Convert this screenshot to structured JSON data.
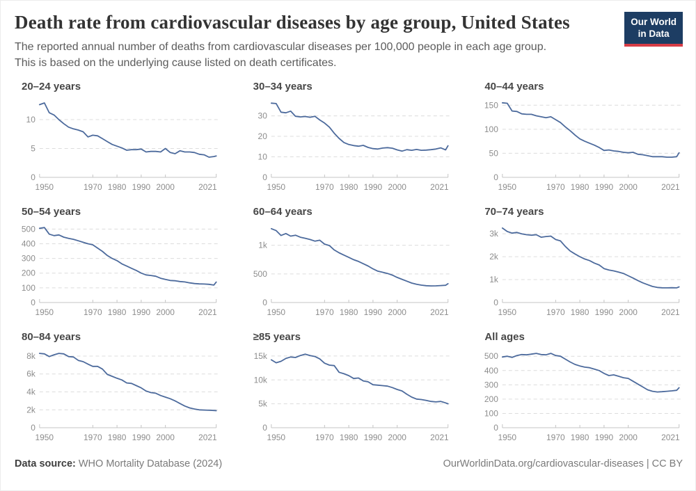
{
  "header": {
    "title": "Death rate from cardiovascular diseases by age group, United States",
    "subtitle": [
      "The reported annual number of deaths from cardiovascular diseases per 100,000 people in each age group.",
      "This is based on the underlying cause listed on death certificates."
    ],
    "logo": {
      "line1": "Our World",
      "line2": "in Data"
    }
  },
  "footer": {
    "source_label": "Data source:",
    "source_value": " WHO Mortality Database (2024)",
    "link": "OurWorldinData.org/cardiovascular-diseases | CC BY"
  },
  "colors": {
    "line": "#4c6a9c",
    "grid": "#dcdcdc",
    "axis": "#c4c4c4",
    "tick_label": "#8c8c8c",
    "logo_bg": "#1d3d63",
    "logo_red": "#d73c46"
  },
  "chart_data": {
    "type": "line",
    "title": "Death rate from cardiovascular diseases by age group, United States",
    "grid": "horizontal-dashed",
    "legend_position": "none",
    "x_range": [
      1948,
      2021
    ],
    "x_tick_labels": [
      "1950",
      "1970",
      "1980",
      "1990",
      "2000",
      "2021"
    ],
    "x_ticks": [
      1950,
      1970,
      1980,
      1990,
      2000,
      2021
    ],
    "x": [
      1948,
      1950,
      1952,
      1954,
      1956,
      1958,
      1960,
      1962,
      1964,
      1966,
      1968,
      1970,
      1972,
      1974,
      1976,
      1978,
      1980,
      1982,
      1984,
      1986,
      1988,
      1990,
      1992,
      1994,
      1996,
      1998,
      2000,
      2002,
      2004,
      2006,
      2008,
      2010,
      2012,
      2014,
      2016,
      2018,
      2020,
      2021
    ],
    "charts": [
      {
        "title": "20–24 years",
        "ylim": [
          0,
          13.5
        ],
        "yticks": [
          {
            "v": 0,
            "label": "0"
          },
          {
            "v": 5,
            "label": "5"
          },
          {
            "v": 10,
            "label": "10"
          }
        ],
        "values": [
          12.6,
          12.9,
          11.2,
          10.8,
          10.0,
          9.3,
          8.7,
          8.4,
          8.2,
          7.9,
          7.0,
          7.3,
          7.2,
          6.7,
          6.2,
          5.7,
          5.4,
          5.1,
          4.7,
          4.8,
          4.8,
          4.9,
          4.4,
          4.5,
          4.5,
          4.4,
          5.0,
          4.3,
          4.1,
          4.6,
          4.4,
          4.4,
          4.3,
          4.0,
          3.9,
          3.5,
          3.6,
          3.7
        ]
      },
      {
        "title": "30–34 years",
        "ylim": [
          0,
          38
        ],
        "yticks": [
          {
            "v": 0,
            "label": "0"
          },
          {
            "v": 10,
            "label": "10"
          },
          {
            "v": 20,
            "label": "20"
          },
          {
            "v": 30,
            "label": "30"
          }
        ],
        "values": [
          36.2,
          36.0,
          31.8,
          31.5,
          32.3,
          29.8,
          29.5,
          29.7,
          29.3,
          29.8,
          28.0,
          26.5,
          24.5,
          21.5,
          19.0,
          17.0,
          16.0,
          15.5,
          15.2,
          15.6,
          14.6,
          14.0,
          13.8,
          14.3,
          14.5,
          14.2,
          13.4,
          12.8,
          13.5,
          13.2,
          13.6,
          13.2,
          13.3,
          13.5,
          13.8,
          14.4,
          13.4,
          15.4
        ]
      },
      {
        "title": "40–44 years",
        "ylim": [
          0,
          162
        ],
        "yticks": [
          {
            "v": 0,
            "label": "0"
          },
          {
            "v": 50,
            "label": "50"
          },
          {
            "v": 100,
            "label": "100"
          },
          {
            "v": 150,
            "label": "150"
          }
        ],
        "values": [
          155,
          154,
          138,
          137,
          132,
          131,
          131,
          128,
          126,
          124,
          126,
          120,
          114,
          105,
          97,
          88,
          80,
          75,
          71,
          67,
          62,
          56,
          57,
          55,
          54,
          52,
          51,
          52,
          48,
          47,
          45,
          43,
          43,
          43,
          42,
          42,
          43,
          51
        ]
      },
      {
        "title": "50–54 years",
        "ylim": [
          0,
          530
        ],
        "yticks": [
          {
            "v": 0,
            "label": "0"
          },
          {
            "v": 100,
            "label": "100"
          },
          {
            "v": 200,
            "label": "200"
          },
          {
            "v": 300,
            "label": "300"
          },
          {
            "v": 400,
            "label": "400"
          },
          {
            "v": 500,
            "label": "500"
          }
        ],
        "values": [
          505,
          510,
          465,
          455,
          460,
          445,
          437,
          430,
          420,
          410,
          400,
          393,
          370,
          348,
          320,
          300,
          285,
          263,
          248,
          233,
          218,
          200,
          188,
          184,
          179,
          165,
          157,
          150,
          148,
          143,
          140,
          134,
          129,
          127,
          126,
          124,
          119,
          139
        ]
      },
      {
        "title": "60–64 years",
        "ylim": [
          0,
          1360
        ],
        "yticks": [
          {
            "v": 0,
            "label": "0"
          },
          {
            "v": 500,
            "label": "500"
          },
          {
            "v": 1000,
            "label": "1k"
          }
        ],
        "values": [
          1290,
          1255,
          1170,
          1205,
          1160,
          1175,
          1140,
          1122,
          1100,
          1072,
          1088,
          1020,
          995,
          918,
          868,
          828,
          788,
          748,
          718,
          678,
          638,
          588,
          548,
          528,
          508,
          478,
          438,
          405,
          373,
          340,
          318,
          303,
          294,
          290,
          291,
          296,
          301,
          329
        ]
      },
      {
        "title": "70–74 years",
        "ylim": [
          0,
          3400
        ],
        "yticks": [
          {
            "v": 0,
            "label": "0"
          },
          {
            "v": 1000,
            "label": "1k"
          },
          {
            "v": 2000,
            "label": "2k"
          },
          {
            "v": 3000,
            "label": "3k"
          }
        ],
        "values": [
          3250,
          3100,
          3030,
          3060,
          3000,
          2960,
          2940,
          2960,
          2850,
          2880,
          2900,
          2750,
          2690,
          2450,
          2250,
          2120,
          2000,
          1900,
          1830,
          1720,
          1640,
          1480,
          1420,
          1380,
          1330,
          1270,
          1170,
          1070,
          960,
          860,
          780,
          700,
          660,
          645,
          640,
          646,
          641,
          682
        ]
      },
      {
        "title": "80–84 years",
        "ylim": [
          0,
          8700
        ],
        "yticks": [
          {
            "v": 0,
            "label": "0"
          },
          {
            "v": 2000,
            "label": "2k"
          },
          {
            "v": 4000,
            "label": "4k"
          },
          {
            "v": 6000,
            "label": "6k"
          },
          {
            "v": 8000,
            "label": "8k"
          }
        ],
        "values": [
          8300,
          8250,
          7950,
          8150,
          8300,
          8250,
          7950,
          7900,
          7520,
          7380,
          7100,
          6850,
          6850,
          6550,
          5950,
          5740,
          5520,
          5340,
          5000,
          4950,
          4700,
          4450,
          4100,
          3920,
          3850,
          3600,
          3420,
          3240,
          3000,
          2700,
          2420,
          2210,
          2090,
          2000,
          1970,
          1950,
          1930,
          1900
        ]
      },
      {
        "title": "≥85 years",
        "ylim": [
          0,
          16300
        ],
        "yticks": [
          {
            "v": 0,
            "label": "0"
          },
          {
            "v": 5000,
            "label": "5k"
          },
          {
            "v": 10000,
            "label": "10k"
          },
          {
            "v": 15000,
            "label": "15k"
          }
        ],
        "values": [
          14200,
          13600,
          13900,
          14500,
          14800,
          14700,
          15100,
          15400,
          15100,
          14900,
          14400,
          13500,
          13100,
          13000,
          11600,
          11300,
          10900,
          10300,
          10400,
          9800,
          9600,
          9000,
          8900,
          8800,
          8700,
          8400,
          8000,
          7700,
          7000,
          6400,
          6000,
          5900,
          5700,
          5500,
          5400,
          5500,
          5200,
          5000
        ]
      },
      {
        "title": "All ages",
        "ylim": [
          0,
          545
        ],
        "yticks": [
          {
            "v": 0,
            "label": "0"
          },
          {
            "v": 100,
            "label": "100"
          },
          {
            "v": 200,
            "label": "200"
          },
          {
            "v": 300,
            "label": "300"
          },
          {
            "v": 400,
            "label": "400"
          },
          {
            "v": 500,
            "label": "500"
          }
        ],
        "values": [
          495,
          500,
          492,
          505,
          512,
          510,
          515,
          520,
          512,
          510,
          520,
          505,
          500,
          480,
          460,
          443,
          432,
          424,
          420,
          410,
          400,
          380,
          365,
          370,
          360,
          350,
          345,
          325,
          305,
          285,
          265,
          255,
          250,
          252,
          255,
          258,
          262,
          280
        ]
      }
    ]
  }
}
